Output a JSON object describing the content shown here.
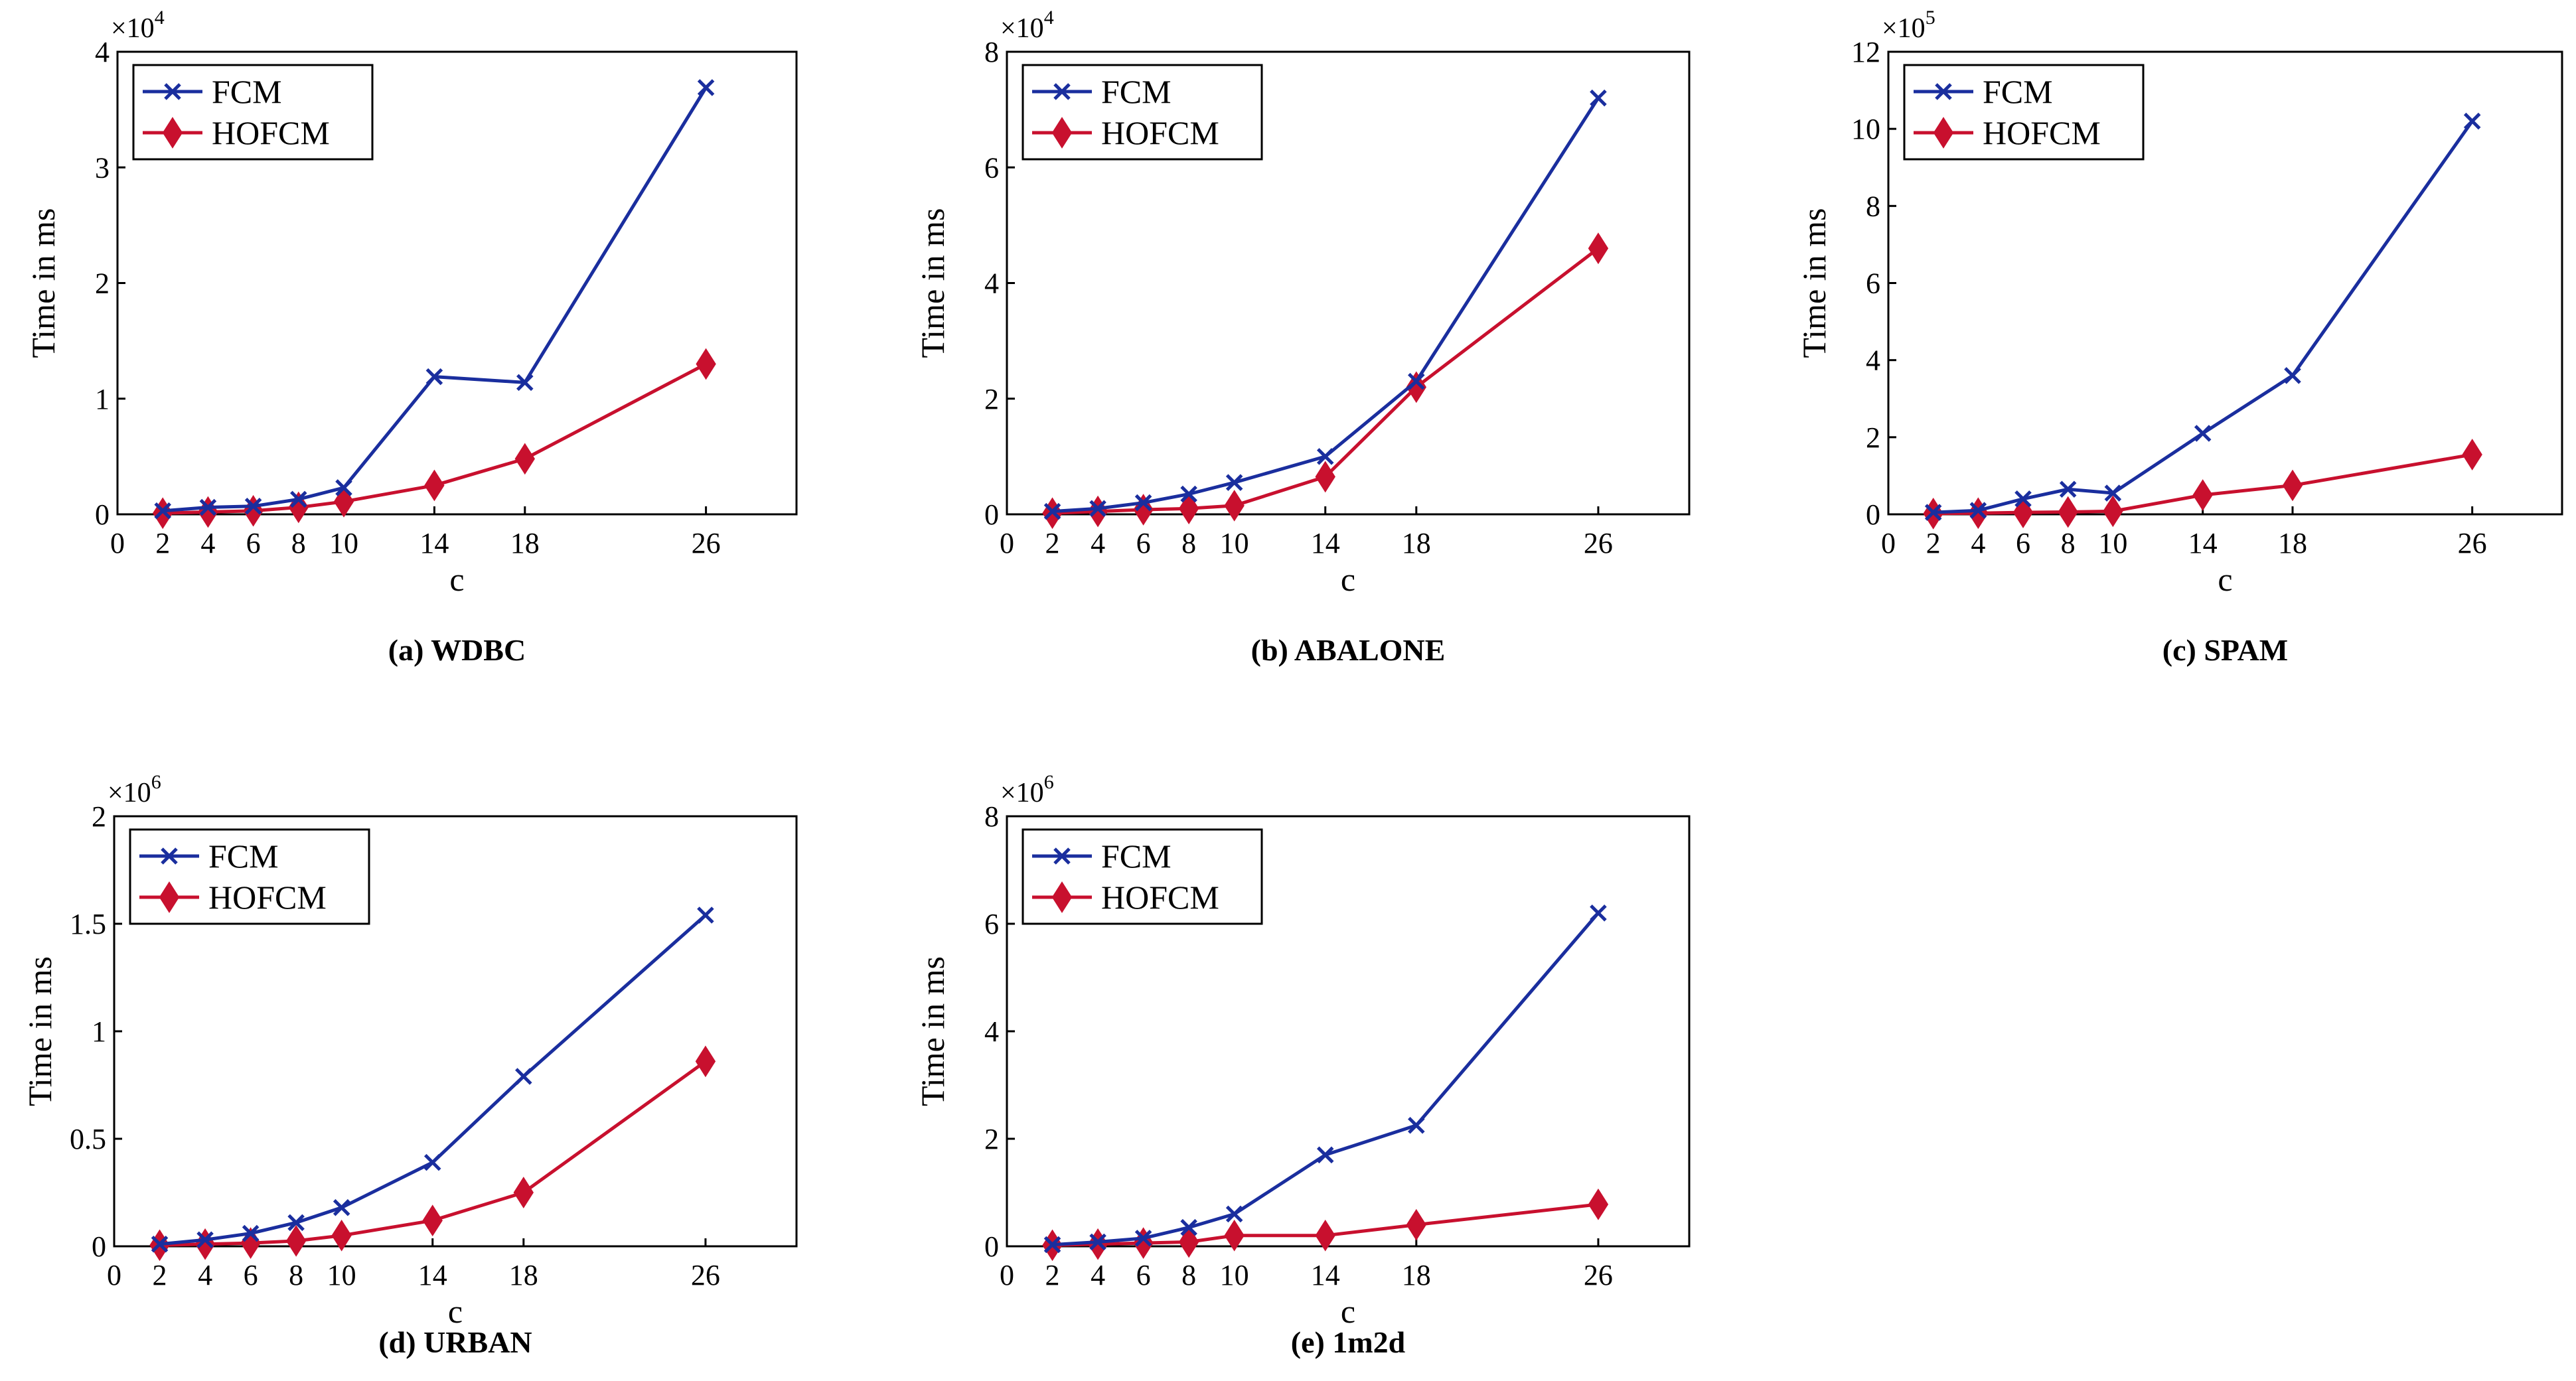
{
  "figure": {
    "legend_labels": [
      "FCM",
      "HOFCM"
    ],
    "colors": {
      "fcm": "#1a2e9e",
      "hofcm": "#c8102e"
    }
  },
  "chart_data": [
    {
      "id": "a",
      "type": "line",
      "caption": "(a) WDBC",
      "xlabel": "c",
      "ylabel": "Time in ms",
      "multiplier": "×10",
      "exponent": "4",
      "xlim": [
        0,
        30
      ],
      "ylim": [
        0,
        4
      ],
      "xticks": [
        0,
        2,
        4,
        6,
        8,
        10,
        14,
        18,
        26
      ],
      "yticks": [
        0,
        1,
        2,
        3,
        4
      ],
      "ytick_labels": [
        "0",
        "1",
        "2",
        "3",
        "4"
      ],
      "x": [
        2,
        4,
        6,
        8,
        10,
        14,
        18,
        26
      ],
      "series": [
        {
          "name": "FCM",
          "marker": "x",
          "values": [
            0.03,
            0.06,
            0.07,
            0.13,
            0.23,
            1.19,
            1.14,
            3.69
          ]
        },
        {
          "name": "HOFCM",
          "marker": "diamond",
          "values": [
            0.01,
            0.02,
            0.03,
            0.06,
            0.11,
            0.25,
            0.48,
            1.3
          ]
        }
      ]
    },
    {
      "id": "b",
      "type": "line",
      "caption": "(b) ABALONE",
      "xlabel": "c",
      "ylabel": "Time in ms",
      "multiplier": "×10",
      "exponent": "4",
      "xlim": [
        0,
        30
      ],
      "ylim": [
        0,
        8
      ],
      "xticks": [
        0,
        2,
        4,
        6,
        8,
        10,
        14,
        18,
        26
      ],
      "yticks": [
        0,
        2,
        4,
        6,
        8
      ],
      "ytick_labels": [
        "0",
        "2",
        "4",
        "6",
        "8"
      ],
      "x": [
        2,
        4,
        6,
        8,
        10,
        14,
        18,
        26
      ],
      "series": [
        {
          "name": "FCM",
          "marker": "x",
          "values": [
            0.05,
            0.1,
            0.2,
            0.35,
            0.55,
            1.0,
            2.3,
            7.2
          ]
        },
        {
          "name": "HOFCM",
          "marker": "diamond",
          "values": [
            0.02,
            0.05,
            0.08,
            0.1,
            0.15,
            0.65,
            2.2,
            4.6
          ]
        }
      ]
    },
    {
      "id": "c",
      "type": "line",
      "caption": "(c) SPAM",
      "xlabel": "c",
      "ylabel": "Time in ms",
      "multiplier": "×10",
      "exponent": "5",
      "xlim": [
        0,
        30
      ],
      "ylim": [
        0,
        12
      ],
      "xticks": [
        0,
        2,
        4,
        6,
        8,
        10,
        14,
        18,
        26
      ],
      "yticks": [
        0,
        2,
        4,
        6,
        8,
        10,
        12
      ],
      "ytick_labels": [
        "0",
        "2",
        "4",
        "6",
        "8",
        "10",
        "12"
      ],
      "x": [
        2,
        4,
        6,
        8,
        10,
        14,
        18,
        26
      ],
      "series": [
        {
          "name": "FCM",
          "marker": "x",
          "values": [
            0.05,
            0.1,
            0.4,
            0.65,
            0.55,
            2.1,
            3.6,
            10.2
          ]
        },
        {
          "name": "HOFCM",
          "marker": "diamond",
          "values": [
            0.02,
            0.03,
            0.05,
            0.06,
            0.08,
            0.5,
            0.75,
            1.55
          ]
        }
      ]
    },
    {
      "id": "d",
      "type": "line",
      "caption": "(d) URBAN",
      "xlabel": "c",
      "ylabel": "Time in ms",
      "multiplier": "×10",
      "exponent": "6",
      "xlim": [
        0,
        30
      ],
      "ylim": [
        0,
        2
      ],
      "xticks": [
        0,
        2,
        4,
        6,
        8,
        10,
        14,
        18,
        26
      ],
      "yticks": [
        0,
        0.5,
        1,
        1.5,
        2
      ],
      "ytick_labels": [
        "0",
        "0.5",
        "1",
        "1.5",
        "2"
      ],
      "x": [
        2,
        4,
        6,
        8,
        10,
        14,
        18,
        26
      ],
      "series": [
        {
          "name": "FCM",
          "marker": "x",
          "values": [
            0.01,
            0.03,
            0.06,
            0.11,
            0.18,
            0.39,
            0.79,
            1.54
          ]
        },
        {
          "name": "HOFCM",
          "marker": "diamond",
          "values": [
            0.005,
            0.01,
            0.015,
            0.025,
            0.05,
            0.12,
            0.25,
            0.86
          ]
        }
      ]
    },
    {
      "id": "e",
      "type": "line",
      "caption": "(e) 1m2d",
      "xlabel": "c",
      "ylabel": "Time in ms",
      "multiplier": "×10",
      "exponent": "6",
      "xlim": [
        0,
        30
      ],
      "ylim": [
        0,
        8
      ],
      "xticks": [
        0,
        2,
        4,
        6,
        8,
        10,
        14,
        18,
        26
      ],
      "yticks": [
        0,
        2,
        4,
        6,
        8
      ],
      "ytick_labels": [
        "0",
        "2",
        "4",
        "6",
        "8"
      ],
      "x": [
        2,
        4,
        6,
        8,
        10,
        14,
        18,
        26
      ],
      "series": [
        {
          "name": "FCM",
          "marker": "x",
          "values": [
            0.03,
            0.08,
            0.15,
            0.35,
            0.6,
            1.7,
            2.25,
            6.2
          ]
        },
        {
          "name": "HOFCM",
          "marker": "diamond",
          "values": [
            0.02,
            0.04,
            0.06,
            0.08,
            0.2,
            0.2,
            0.4,
            0.78
          ]
        }
      ]
    }
  ]
}
